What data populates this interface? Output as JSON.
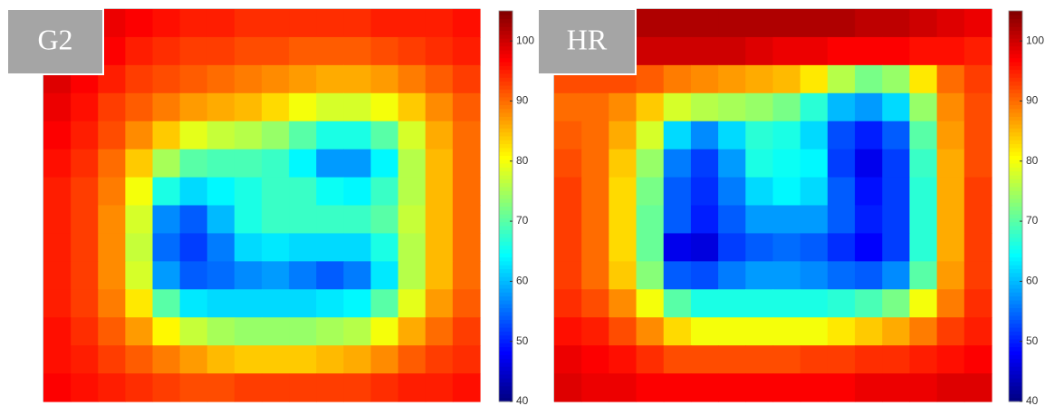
{
  "chart_data": [
    {
      "type": "heatmap",
      "title": "G2",
      "colormap": "jet",
      "clim": [
        40,
        105
      ],
      "colorbar_ticks": [
        40,
        50,
        60,
        70,
        80,
        90,
        100
      ],
      "z": [
        [
          100,
          99,
          98,
          97,
          96,
          95,
          95,
          94,
          94,
          94,
          94,
          94,
          95,
          95,
          95,
          96
        ],
        [
          100,
          99,
          97,
          95,
          94,
          93,
          93,
          92,
          92,
          91,
          91,
          91,
          92,
          93,
          94,
          95
        ],
        [
          99,
          97,
          95,
          93,
          92,
          91,
          90,
          89,
          88,
          87,
          86,
          86,
          87,
          89,
          91,
          93
        ],
        [
          98,
          96,
          93,
          91,
          89,
          87,
          86,
          85,
          83,
          80,
          78,
          78,
          80,
          84,
          88,
          91
        ],
        [
          97,
          95,
          92,
          88,
          84,
          79,
          77,
          76,
          74,
          70,
          66,
          66,
          70,
          78,
          86,
          90
        ],
        [
          96,
          94,
          90,
          84,
          75,
          70,
          69,
          69,
          68,
          64,
          58,
          58,
          64,
          76,
          85,
          90
        ],
        [
          95,
          93,
          89,
          80,
          66,
          62,
          64,
          66,
          68,
          68,
          65,
          64,
          68,
          76,
          85,
          90
        ],
        [
          95,
          93,
          88,
          78,
          57,
          54,
          60,
          66,
          68,
          68,
          68,
          68,
          70,
          77,
          85,
          90
        ],
        [
          95,
          93,
          88,
          77,
          55,
          52,
          56,
          62,
          63,
          62,
          62,
          62,
          66,
          76,
          85,
          90
        ],
        [
          95,
          93,
          88,
          78,
          58,
          54,
          55,
          57,
          58,
          56,
          54,
          56,
          63,
          76,
          85,
          90
        ],
        [
          95,
          93,
          89,
          82,
          70,
          63,
          62,
          62,
          62,
          62,
          63,
          64,
          70,
          79,
          87,
          91
        ],
        [
          96,
          94,
          91,
          87,
          81,
          77,
          75,
          74,
          74,
          74,
          75,
          76,
          80,
          86,
          90,
          93
        ],
        [
          96,
          95,
          93,
          91,
          89,
          87,
          85,
          84,
          84,
          84,
          85,
          86,
          88,
          91,
          93,
          94
        ],
        [
          97,
          96,
          95,
          94,
          93,
          92,
          92,
          93,
          93,
          93,
          93,
          93,
          94,
          95,
          95,
          96
        ]
      ]
    },
    {
      "type": "heatmap",
      "title": "HR",
      "colormap": "jet",
      "clim": [
        40,
        105
      ],
      "colorbar_ticks": [
        40,
        50,
        60,
        70,
        80,
        90,
        100
      ],
      "z": [
        [
          98,
          99,
          101,
          102,
          102,
          102,
          102,
          102,
          102,
          102,
          102,
          101,
          101,
          100,
          99,
          98
        ],
        [
          96,
          97,
          99,
          100,
          100,
          100,
          100,
          99,
          98,
          98,
          97,
          97,
          97,
          96,
          96,
          95
        ],
        [
          92,
          92,
          92,
          91,
          89,
          88,
          87,
          86,
          85,
          82,
          76,
          72,
          74,
          82,
          90,
          93
        ],
        [
          90,
          90,
          88,
          84,
          78,
          76,
          75,
          74,
          72,
          67,
          60,
          58,
          62,
          74,
          88,
          92
        ],
        [
          91,
          90,
          86,
          78,
          62,
          57,
          62,
          67,
          66,
          62,
          53,
          50,
          54,
          70,
          87,
          92
        ],
        [
          92,
          90,
          84,
          74,
          56,
          52,
          58,
          66,
          65,
          64,
          52,
          47,
          52,
          68,
          86,
          92
        ],
        [
          93,
          90,
          83,
          72,
          54,
          51,
          56,
          62,
          64,
          62,
          54,
          49,
          52,
          67,
          86,
          93
        ],
        [
          93,
          90,
          83,
          71,
          54,
          50,
          54,
          58,
          58,
          58,
          54,
          50,
          52,
          67,
          86,
          93
        ],
        [
          93,
          90,
          83,
          71,
          47,
          46,
          52,
          54,
          55,
          54,
          51,
          48,
          52,
          67,
          86,
          93
        ],
        [
          93,
          90,
          84,
          73,
          54,
          53,
          56,
          58,
          58,
          57,
          55,
          54,
          57,
          70,
          87,
          93
        ],
        [
          94,
          92,
          88,
          80,
          70,
          66,
          66,
          66,
          66,
          66,
          67,
          69,
          72,
          80,
          89,
          94
        ],
        [
          96,
          95,
          92,
          88,
          83,
          80,
          80,
          80,
          80,
          80,
          82,
          84,
          86,
          89,
          93,
          95
        ],
        [
          98,
          97,
          96,
          94,
          92,
          92,
          92,
          92,
          92,
          93,
          93,
          94,
          94,
          95,
          96,
          97
        ],
        [
          99,
          98,
          98,
          97,
          97,
          97,
          97,
          97,
          97,
          97,
          97,
          98,
          98,
          98,
          99,
          99
        ]
      ]
    }
  ]
}
